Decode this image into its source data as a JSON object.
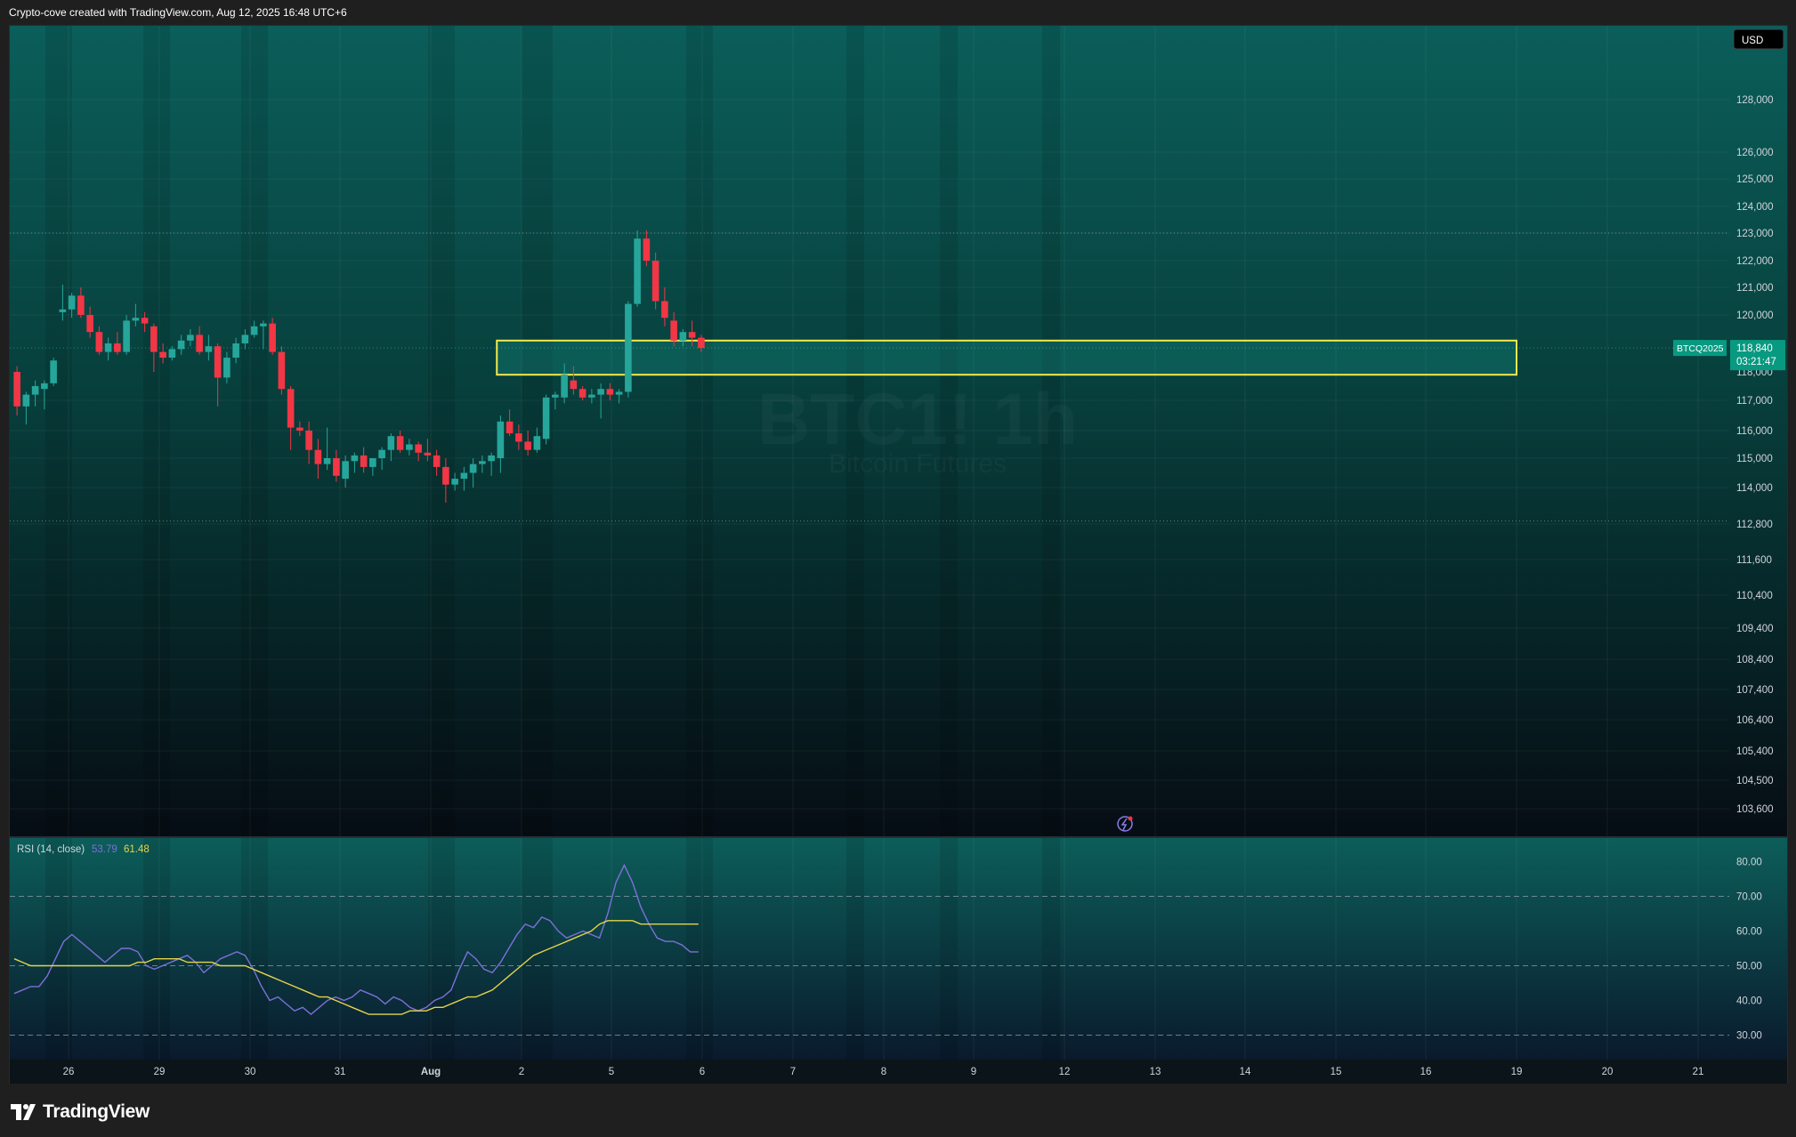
{
  "header": {
    "attribution": "Crypto-cove created with TradingView.com, Aug 12, 2025 16:48 UTC+6"
  },
  "footer": {
    "brand": "TradingView"
  },
  "chart_data": [
    {
      "type": "candlestick",
      "currency_label": "USD",
      "watermark": {
        "symbol": "BTC1! 1h",
        "subtitle": "Bitcoin Futures"
      },
      "y_ticks": [
        128000,
        126000,
        125000,
        124000,
        123000,
        122000,
        121000,
        120000,
        117000,
        116000,
        115000,
        114000,
        112800,
        111600,
        110400,
        109400,
        108400,
        107400,
        106400,
        105400,
        104500,
        103600
      ],
      "y_tick_labels": [
        "128,000",
        "126,000",
        "125,000",
        "124,000",
        "123,000",
        "122,000",
        "121,000",
        "120,000",
        "117,000",
        "116,000",
        "115,000",
        "114,000",
        "112,800",
        "111,600",
        "110,400",
        "109,400",
        "108,400",
        "107,400",
        "106,400",
        "105,400",
        "104,500",
        "103,600"
      ],
      "x_labels": [
        "26",
        "29",
        "30",
        "31",
        "Aug",
        "2",
        "5",
        "6",
        "7",
        "8",
        "9",
        "12",
        "13",
        "14",
        "15",
        "16",
        "19",
        "20",
        "21"
      ],
      "price_tag": {
        "symbol": "BTCQ2025",
        "price": "118,840",
        "countdown": "03:21:47"
      },
      "label_118k": "118,000",
      "reference_lines": [
        123000,
        112900
      ],
      "highlight_zone": {
        "low": 117900,
        "high": 119100,
        "from_candle": 53,
        "to_x_label": "19",
        "color": "#f2e94e"
      },
      "colors": {
        "up": "#26a69a",
        "down": "#f23645"
      },
      "candles": [
        [
          118000,
          118200,
          116500,
          116800
        ],
        [
          116800,
          117300,
          116200,
          117200
        ],
        [
          117200,
          117700,
          116800,
          117500
        ],
        [
          117400,
          117700,
          116700,
          117600
        ],
        [
          117600,
          118500,
          117500,
          118400
        ],
        [
          120100,
          121100,
          119800,
          120200
        ],
        [
          120200,
          120800,
          119900,
          120700
        ],
        [
          120700,
          121000,
          119900,
          120000
        ],
        [
          120000,
          120300,
          119200,
          119400
        ],
        [
          119400,
          119600,
          118600,
          118700
        ],
        [
          118700,
          119200,
          118400,
          119000
        ],
        [
          119000,
          119400,
          118600,
          118700
        ],
        [
          118700,
          120000,
          118600,
          119800
        ],
        [
          119800,
          120400,
          119600,
          119900
        ],
        [
          119900,
          120100,
          119400,
          119700
        ],
        [
          119600,
          119700,
          118000,
          118700
        ],
        [
          118700,
          119000,
          118300,
          118500
        ],
        [
          118500,
          118900,
          118400,
          118800
        ],
        [
          118800,
          119300,
          118600,
          119100
        ],
        [
          119100,
          119500,
          118900,
          119300
        ],
        [
          119300,
          119600,
          118600,
          118700
        ],
        [
          118700,
          119300,
          118400,
          118900
        ],
        [
          118900,
          119000,
          116800,
          117800
        ],
        [
          117800,
          118700,
          117600,
          118500
        ],
        [
          118500,
          119200,
          118300,
          119000
        ],
        [
          119000,
          119500,
          118800,
          119300
        ],
        [
          119300,
          119800,
          119200,
          119600
        ],
        [
          119600,
          119800,
          118800,
          119700
        ],
        [
          119700,
          119900,
          118600,
          118700
        ],
        [
          118700,
          118900,
          117200,
          117400
        ],
        [
          117400,
          117500,
          115300,
          116100
        ],
        [
          116100,
          116300,
          115800,
          116000
        ],
        [
          116000,
          116300,
          114800,
          115300
        ],
        [
          115300,
          115700,
          114300,
          114800
        ],
        [
          114800,
          116100,
          114600,
          115000
        ],
        [
          115000,
          115300,
          114200,
          114400
        ],
        [
          114300,
          115100,
          114000,
          114900
        ],
        [
          114900,
          115200,
          114500,
          115100
        ],
        [
          115100,
          115400,
          114500,
          114700
        ],
        [
          114700,
          115000,
          114400,
          115000
        ],
        [
          115000,
          115400,
          114600,
          115300
        ],
        [
          115300,
          115900,
          114900,
          115800
        ],
        [
          115800,
          116000,
          115200,
          115300
        ],
        [
          115300,
          115700,
          115100,
          115500
        ],
        [
          115500,
          115600,
          114900,
          115200
        ],
        [
          115200,
          115700,
          114900,
          115100
        ],
        [
          115100,
          115300,
          114400,
          114700
        ],
        [
          114700,
          115000,
          113500,
          114100
        ],
        [
          114100,
          114500,
          113900,
          114300
        ],
        [
          114300,
          114700,
          113900,
          114500
        ],
        [
          114500,
          115000,
          114000,
          114800
        ],
        [
          114800,
          115100,
          114500,
          114900
        ],
        [
          114900,
          115200,
          114400,
          115100
        ],
        [
          115000,
          116500,
          114500,
          116300
        ],
        [
          116300,
          116700,
          115800,
          115900
        ],
        [
          115900,
          116200,
          115300,
          115600
        ],
        [
          115600,
          116000,
          115100,
          115300
        ],
        [
          115300,
          116100,
          115200,
          115800
        ],
        [
          115700,
          117200,
          115500,
          117100
        ],
        [
          117100,
          117300,
          116700,
          117200
        ],
        [
          117100,
          118300,
          116900,
          117900
        ],
        [
          117700,
          118200,
          117200,
          117400
        ],
        [
          117400,
          117500,
          117000,
          117100
        ],
        [
          117100,
          117400,
          116900,
          117200
        ],
        [
          117200,
          117600,
          116400,
          117400
        ],
        [
          117400,
          117600,
          117000,
          117200
        ],
        [
          117200,
          117400,
          116900,
          117300
        ],
        [
          117300,
          120500,
          117100,
          120400
        ],
        [
          120400,
          123100,
          120300,
          122800
        ],
        [
          122800,
          123100,
          121800,
          122000
        ],
        [
          122000,
          122300,
          120200,
          120500
        ],
        [
          120500,
          121000,
          119600,
          119900
        ],
        [
          119800,
          120100,
          118900,
          119100
        ],
        [
          119100,
          119500,
          118900,
          119400
        ],
        [
          119400,
          119800,
          118900,
          119200
        ],
        [
          119200,
          119300,
          118700,
          118840
        ]
      ]
    },
    {
      "type": "line",
      "indicator_label": "RSI (14, close)",
      "readings": [
        "53.79",
        "61.48"
      ],
      "y_ticks": [
        80,
        70,
        60,
        50,
        40,
        30
      ],
      "y_tick_labels": [
        "80.00",
        "70.00",
        "60.00",
        "50.00",
        "40.00",
        "30.00"
      ],
      "bands": [
        70,
        50,
        30
      ],
      "series": [
        {
          "color": "#7e6fd8",
          "values": [
            42,
            43,
            44,
            44,
            47,
            52,
            57,
            59,
            57,
            55,
            53,
            51,
            53,
            55,
            55,
            54,
            50,
            49,
            50,
            51,
            52,
            53,
            51,
            48,
            50,
            52,
            53,
            54,
            53,
            49,
            44,
            40,
            41,
            39,
            37,
            38,
            36,
            38,
            40,
            41,
            40,
            41,
            43,
            42,
            41,
            39,
            41,
            40,
            38,
            37,
            38,
            40,
            41,
            43,
            49,
            54,
            52,
            49,
            48,
            51,
            55,
            59,
            62,
            61,
            64,
            63,
            60,
            58,
            59,
            60,
            59,
            58,
            65,
            74,
            79,
            74,
            67,
            62,
            58,
            57,
            57,
            56,
            54,
            54
          ]
        },
        {
          "color": "#e6d34a",
          "values": [
            52,
            51,
            50,
            50,
            50,
            50,
            50,
            50,
            50,
            50,
            50,
            50,
            50,
            50,
            50,
            51,
            51,
            52,
            52,
            52,
            52,
            51,
            51,
            51,
            51,
            50,
            50,
            50,
            50,
            49,
            48,
            47,
            46,
            45,
            44,
            43,
            42,
            41,
            41,
            40,
            39,
            38,
            37,
            36,
            36,
            36,
            36,
            36,
            37,
            37,
            37,
            38,
            38,
            39,
            40,
            41,
            41,
            42,
            43,
            45,
            47,
            49,
            51,
            53,
            54,
            55,
            56,
            57,
            58,
            59,
            60,
            62,
            63,
            63,
            63,
            63,
            62,
            62,
            62,
            62,
            62,
            62,
            62,
            62
          ]
        }
      ]
    }
  ]
}
